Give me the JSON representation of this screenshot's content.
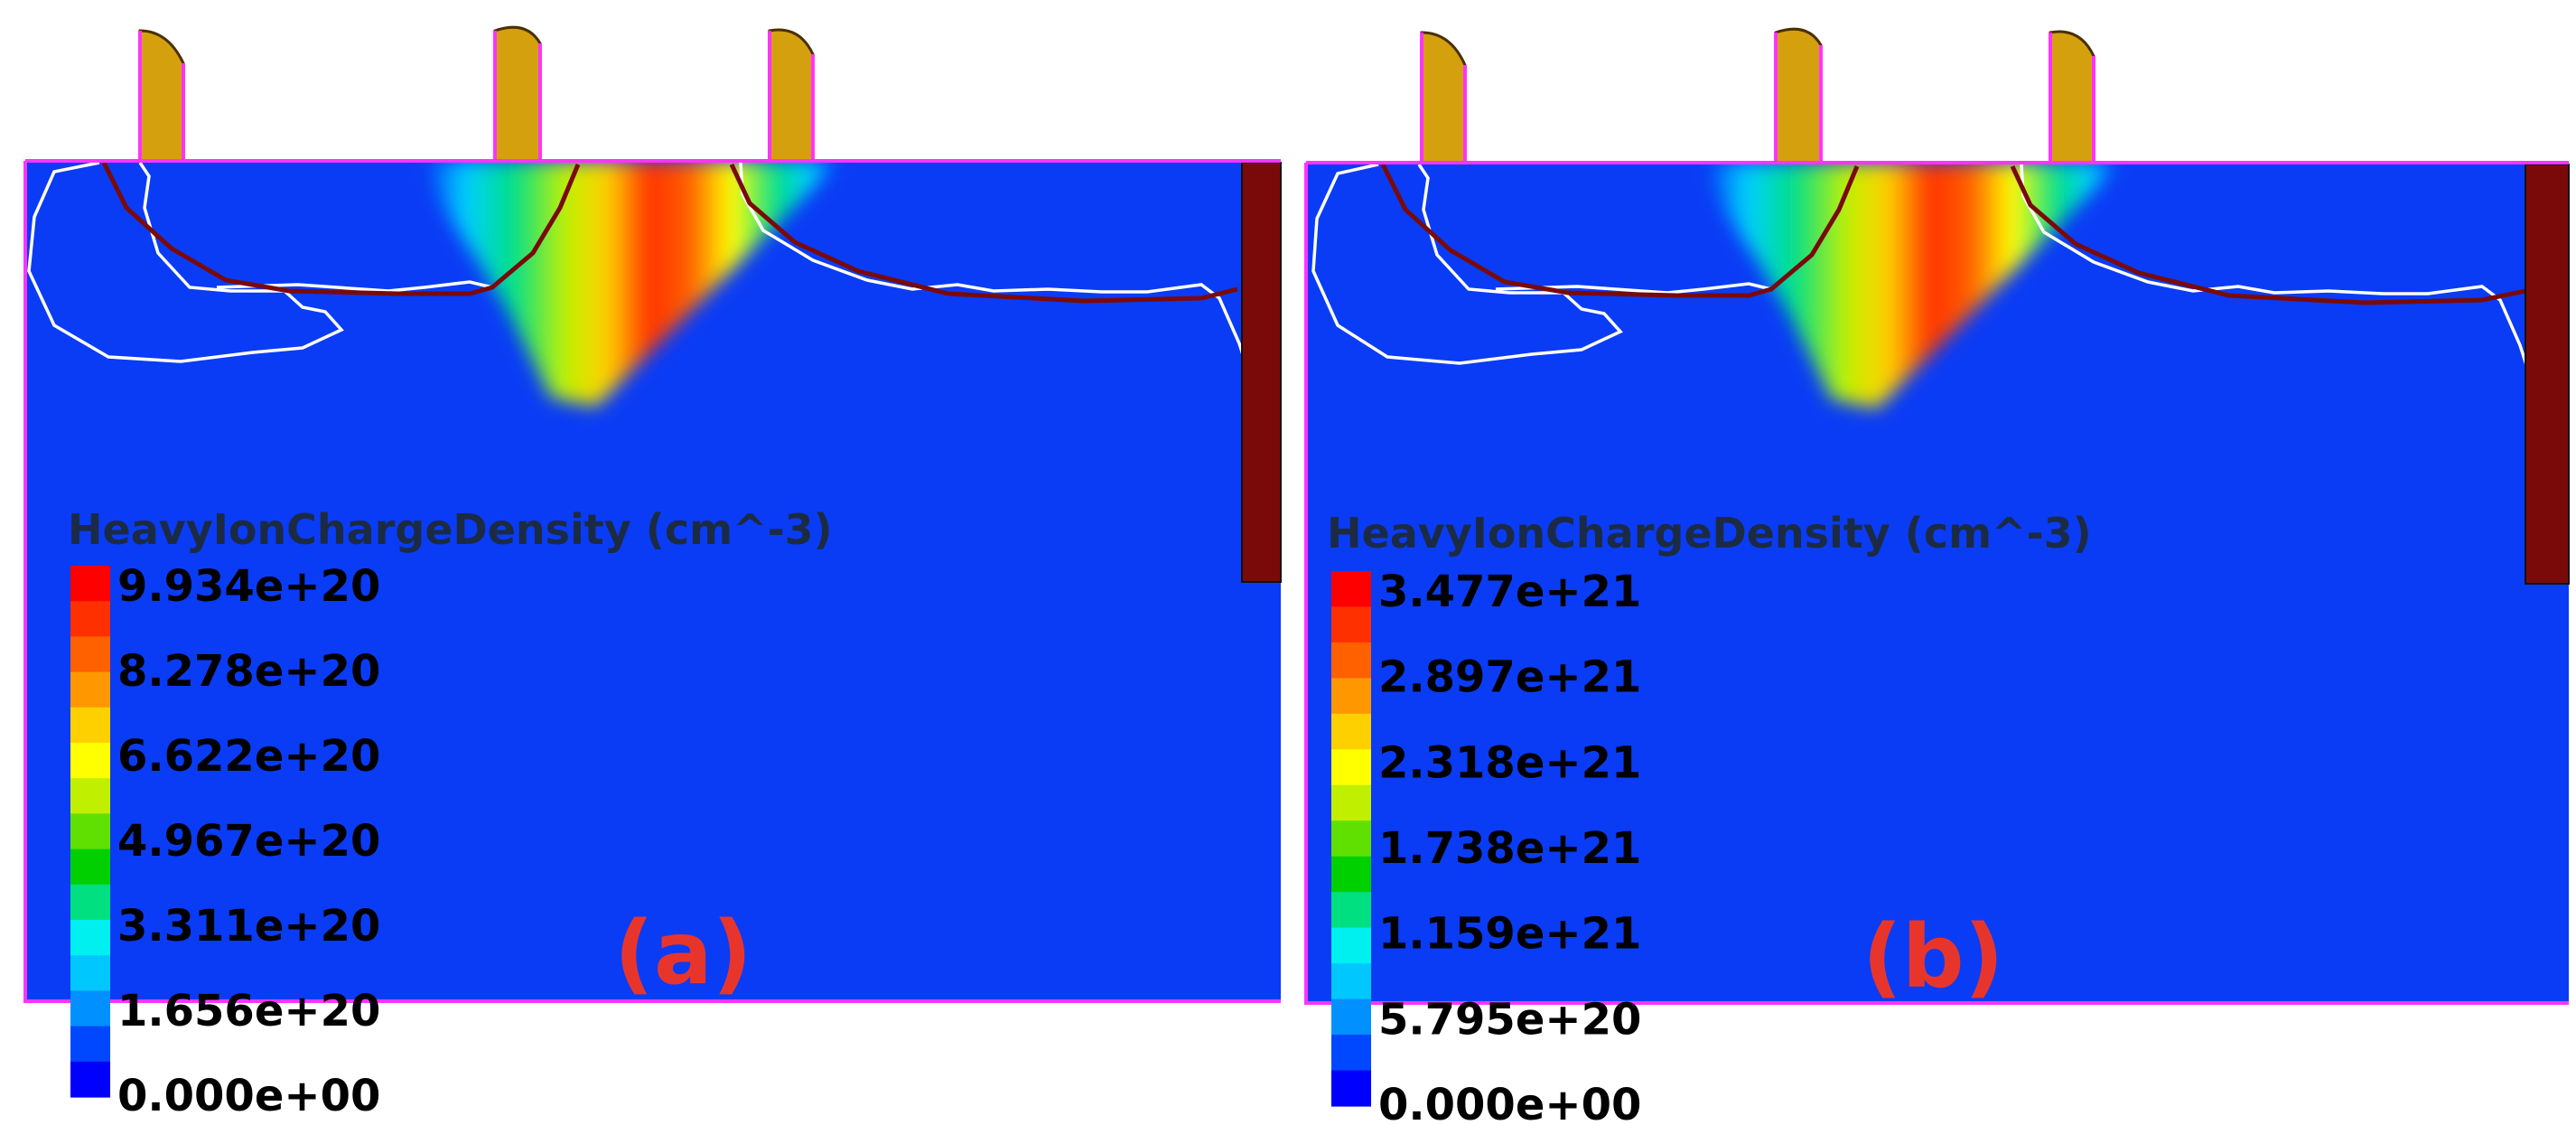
{
  "colors": {
    "substrate": "#0a3cf5",
    "gate": "#d4a00e",
    "gate_outline": "#4a3000",
    "border": "#ff33ff",
    "contact": "#7a0a0a",
    "junction": "#7a0a0a",
    "depletion": "#ffffff",
    "label": "#e8352c"
  },
  "colormap": [
    "#0000ff",
    "#0048ff",
    "#0090ff",
    "#00c8ff",
    "#00f0f0",
    "#00e080",
    "#00d000",
    "#60e000",
    "#c0f000",
    "#ffff00",
    "#ffd000",
    "#ff9800",
    "#ff6000",
    "#ff3000",
    "#ff0000"
  ],
  "panels": [
    {
      "id": "a",
      "label": "(a)",
      "legend_title": "HeavyIonChargeDensity (cm^-3)",
      "ticks": [
        "9.934e+20",
        "8.278e+20",
        "6.622e+20",
        "4.967e+20",
        "3.311e+20",
        "1.656e+20",
        "0.000e+00"
      ]
    },
    {
      "id": "b",
      "label": "(b)",
      "legend_title": "HeavyIonChargeDensity (cm^-3)",
      "ticks": [
        "3.477e+21",
        "2.897e+21",
        "2.318e+21",
        "1.738e+21",
        "1.159e+21",
        "5.795e+20",
        "0.000e+00"
      ]
    }
  ]
}
